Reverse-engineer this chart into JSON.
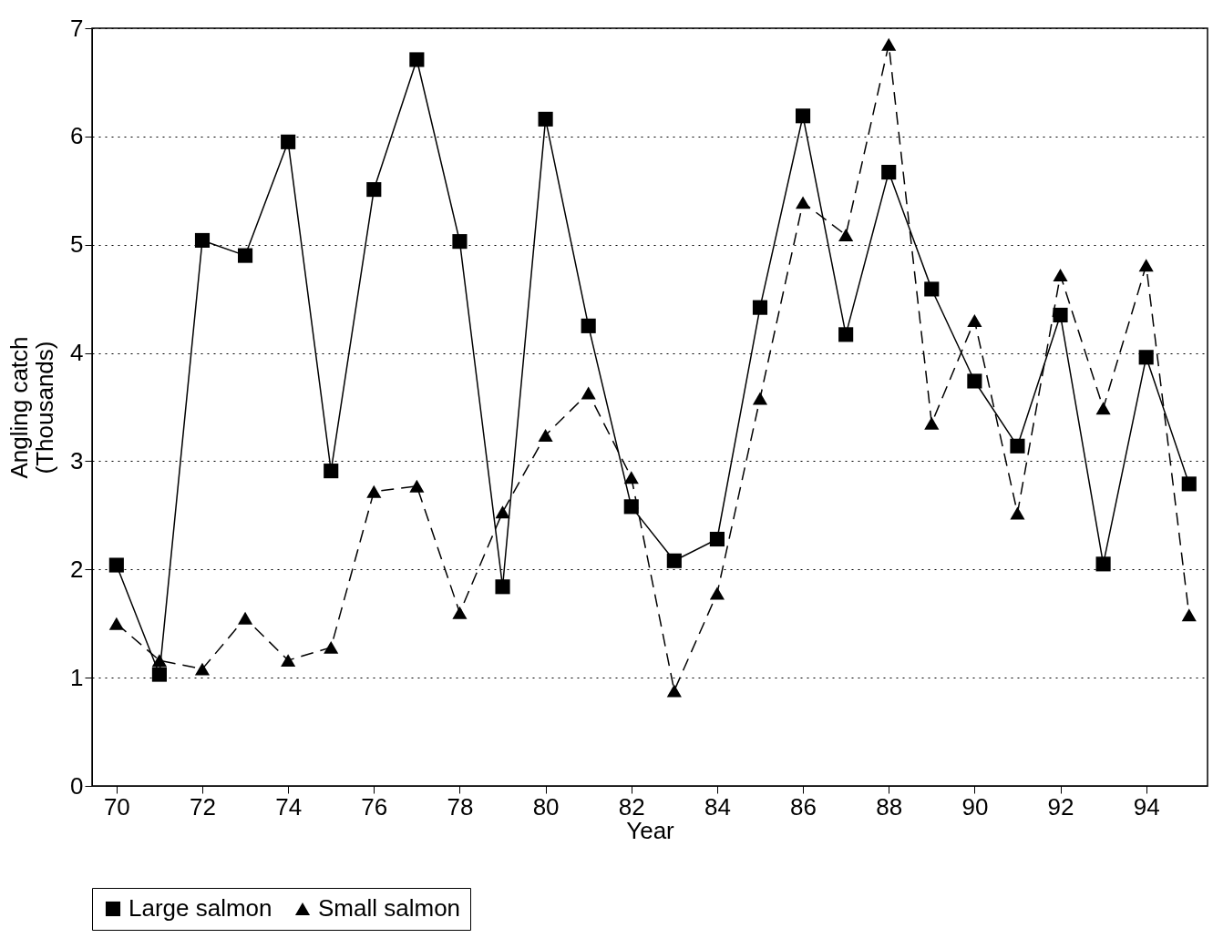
{
  "chart_data": {
    "type": "line",
    "xlabel": "Year",
    "ylabel": "Angling catch\n(Thousands)",
    "x": [
      70,
      71,
      72,
      73,
      74,
      75,
      76,
      77,
      78,
      79,
      80,
      81,
      82,
      83,
      84,
      85,
      86,
      87,
      88,
      89,
      90,
      91,
      92,
      93,
      94,
      95
    ],
    "series": [
      {
        "name": "Large salmon",
        "color": "#000000",
        "marker": "square",
        "line_style": "solid",
        "values": [
          2.04,
          1.03,
          5.04,
          4.9,
          5.95,
          2.91,
          5.51,
          6.71,
          5.03,
          1.84,
          6.16,
          4.25,
          2.58,
          2.08,
          2.28,
          4.42,
          6.19,
          4.17,
          5.67,
          4.59,
          3.74,
          3.14,
          4.35,
          2.05,
          3.96,
          2.79
        ]
      },
      {
        "name": "Small salmon",
        "color": "#000000",
        "marker": "triangle",
        "line_style": "dashed",
        "values": [
          1.5,
          1.16,
          1.08,
          1.55,
          1.16,
          1.28,
          2.72,
          2.77,
          1.6,
          2.53,
          3.24,
          3.63,
          2.85,
          0.88,
          1.78,
          3.58,
          5.39,
          5.09,
          6.85,
          3.35,
          4.3,
          2.52,
          4.72,
          3.49,
          4.81,
          1.58
        ]
      }
    ],
    "xlim": [
      69.43,
      95.43
    ],
    "xticks": [
      70,
      72,
      74,
      76,
      78,
      80,
      82,
      84,
      86,
      88,
      90,
      92,
      94
    ],
    "ylim": [
      0,
      7
    ],
    "yticks": [
      0,
      1,
      2,
      3,
      4,
      5,
      6,
      7
    ],
    "grid": "y",
    "legend": "bottom"
  }
}
